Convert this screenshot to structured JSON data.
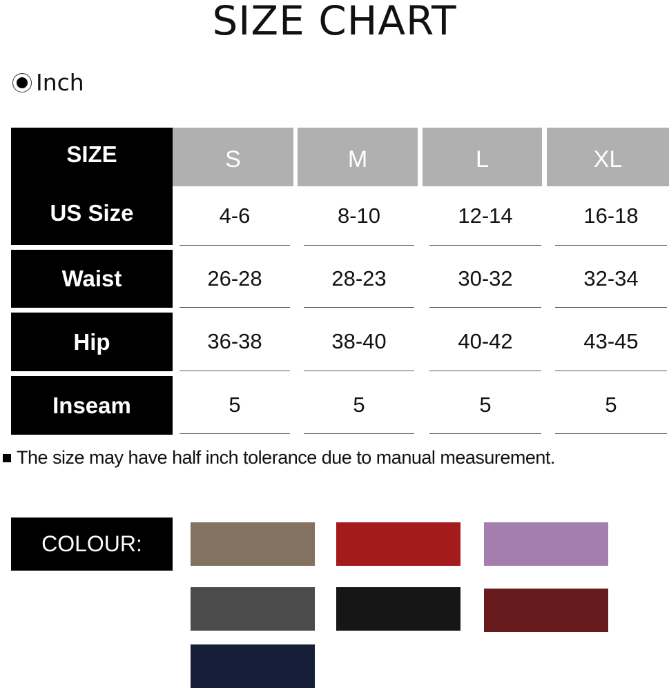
{
  "title": "SIZE CHART",
  "unit": {
    "label": "Inch",
    "selected": true
  },
  "table": {
    "corner": "SIZE",
    "sizes": [
      "S",
      "M",
      "L",
      "XL"
    ],
    "rows": [
      {
        "label": "US Size",
        "values": [
          "4-6",
          "8-10",
          "12-14",
          "16-18"
        ]
      },
      {
        "label": "Waist",
        "values": [
          "26-28",
          "28-23",
          "30-32",
          "32-34"
        ]
      },
      {
        "label": "Hip",
        "values": [
          "36-38",
          "38-40",
          "40-42",
          "43-45"
        ]
      },
      {
        "label": "Inseam",
        "values": [
          "5",
          "5",
          "5",
          "5"
        ]
      }
    ]
  },
  "note": "The size may have half inch tolerance due to manual measurement.",
  "colour": {
    "label": "COLOUR:",
    "swatches": [
      "#837162",
      "#a41b1b",
      "#a57eb0",
      "#4b4b4b",
      "#161616",
      "#681b1c",
      "#161e38"
    ]
  }
}
